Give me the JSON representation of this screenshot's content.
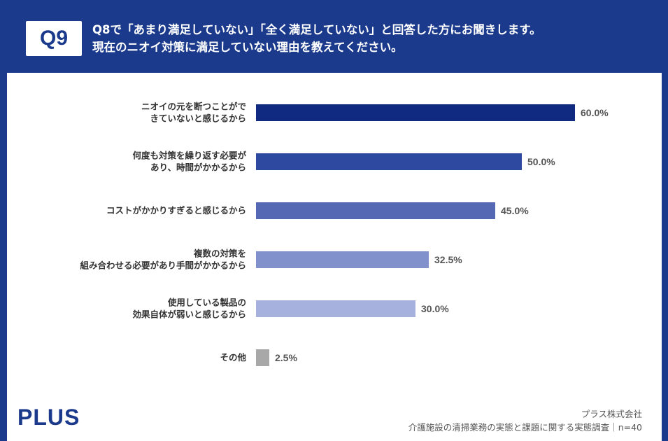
{
  "header": {
    "badge": "Q9",
    "question_line1": "Q8で「あまり満足していない」「全く満足していない」と回答した方にお聞きします。",
    "question_line2": "現在のニオイ対策に満足していない理由を教えてください。"
  },
  "chart_data": {
    "type": "bar",
    "orientation": "horizontal",
    "categories": [
      [
        "ニオイの元を断つことがで",
        "きていないと感じるから"
      ],
      [
        "何度も対策を繰り返す必要が",
        "あり、時間がかかるから"
      ],
      [
        "コストがかかりすぎると感じるから"
      ],
      [
        "複数の対策を",
        "組み合わせる必要があり手間がかかるから"
      ],
      [
        "使用している製品の",
        "効果自体が弱いと感じるから"
      ],
      [
        "その他"
      ]
    ],
    "values": [
      60.0,
      50.0,
      45.0,
      32.5,
      30.0,
      2.5
    ],
    "value_labels": [
      "60.0%",
      "50.0%",
      "45.0%",
      "32.5%",
      "30.0%",
      "2.5%"
    ],
    "bar_colors": [
      "#0f2a80",
      "#2d4aa0",
      "#5468b4",
      "#8191cb",
      "#a6b2dd",
      "#a8a8a8"
    ],
    "xlim": [
      0,
      60
    ],
    "grid": false,
    "legend": "none"
  },
  "branding": {
    "logo": "PLUS"
  },
  "footer": {
    "company": "プラス株式会社",
    "survey": "介護施設の清掃業務の実態と課題に関する実態調査｜n=40"
  },
  "colors": {
    "brand": "#1b3a8c",
    "label_text": "#333333",
    "value_text": "#555555"
  }
}
